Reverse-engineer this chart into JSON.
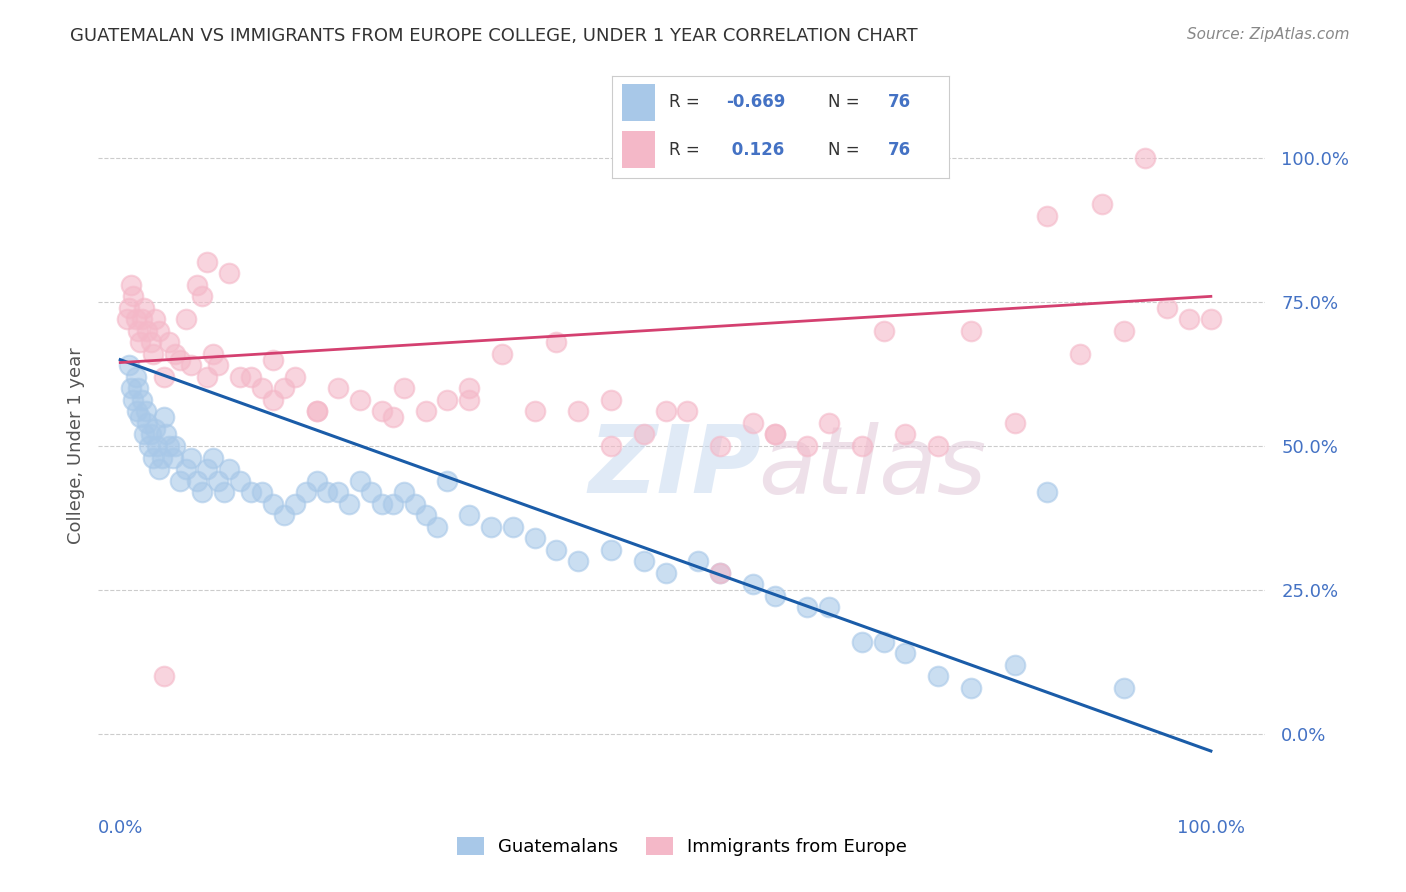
{
  "title": "GUATEMALAN VS IMMIGRANTS FROM EUROPE COLLEGE, UNDER 1 YEAR CORRELATION CHART",
  "source": "Source: ZipAtlas.com",
  "ylabel": "College, Under 1 year",
  "ytick_values": [
    0.0,
    0.25,
    0.5,
    0.75,
    1.0
  ],
  "ytick_labels": [
    "0.0%",
    "25.0%",
    "50.0%",
    "75.0%",
    "100.0%"
  ],
  "xtick_labels": [
    "0.0%",
    "100.0%"
  ],
  "xlim": [
    -0.02,
    1.05
  ],
  "ylim": [
    -0.12,
    1.12
  ],
  "R_blue": -0.669,
  "N_blue": 76,
  "R_pink": 0.126,
  "N_pink": 76,
  "legend_label_blue": "Guatemalans",
  "legend_label_pink": "Immigrants from Europe",
  "blue_scatter_color": "#a8c8e8",
  "pink_scatter_color": "#f4b8c8",
  "blue_line_color": "#1a5ca8",
  "pink_line_color": "#d44070",
  "axis_label_color": "#4472c4",
  "title_color": "#333333",
  "source_color": "#888888",
  "grid_color": "#cccccc",
  "blue_trend_y0": 0.65,
  "blue_trend_y1": -0.03,
  "pink_trend_y0": 0.645,
  "pink_trend_y1": 0.76,
  "blue_x": [
    0.008,
    0.01,
    0.012,
    0.014,
    0.015,
    0.016,
    0.018,
    0.02,
    0.022,
    0.024,
    0.025,
    0.026,
    0.028,
    0.03,
    0.032,
    0.034,
    0.036,
    0.038,
    0.04,
    0.042,
    0.045,
    0.048,
    0.05,
    0.055,
    0.06,
    0.065,
    0.07,
    0.075,
    0.08,
    0.085,
    0.09,
    0.095,
    0.1,
    0.11,
    0.12,
    0.13,
    0.14,
    0.15,
    0.16,
    0.17,
    0.18,
    0.19,
    0.2,
    0.21,
    0.22,
    0.23,
    0.24,
    0.25,
    0.26,
    0.27,
    0.28,
    0.29,
    0.3,
    0.32,
    0.34,
    0.36,
    0.38,
    0.4,
    0.42,
    0.45,
    0.48,
    0.5,
    0.53,
    0.55,
    0.58,
    0.6,
    0.63,
    0.65,
    0.68,
    0.7,
    0.72,
    0.75,
    0.78,
    0.82,
    0.85,
    0.92
  ],
  "blue_y": [
    0.64,
    0.6,
    0.58,
    0.62,
    0.56,
    0.6,
    0.55,
    0.58,
    0.52,
    0.56,
    0.54,
    0.5,
    0.52,
    0.48,
    0.53,
    0.5,
    0.46,
    0.48,
    0.55,
    0.52,
    0.5,
    0.48,
    0.5,
    0.44,
    0.46,
    0.48,
    0.44,
    0.42,
    0.46,
    0.48,
    0.44,
    0.42,
    0.46,
    0.44,
    0.42,
    0.42,
    0.4,
    0.38,
    0.4,
    0.42,
    0.44,
    0.42,
    0.42,
    0.4,
    0.44,
    0.42,
    0.4,
    0.4,
    0.42,
    0.4,
    0.38,
    0.36,
    0.44,
    0.38,
    0.36,
    0.36,
    0.34,
    0.32,
    0.3,
    0.32,
    0.3,
    0.28,
    0.3,
    0.28,
    0.26,
    0.24,
    0.22,
    0.22,
    0.16,
    0.16,
    0.14,
    0.1,
    0.08,
    0.12,
    0.42,
    0.08
  ],
  "pink_x": [
    0.006,
    0.008,
    0.01,
    0.012,
    0.014,
    0.016,
    0.018,
    0.02,
    0.022,
    0.025,
    0.028,
    0.03,
    0.032,
    0.036,
    0.04,
    0.045,
    0.05,
    0.055,
    0.06,
    0.065,
    0.07,
    0.075,
    0.08,
    0.085,
    0.09,
    0.1,
    0.11,
    0.12,
    0.13,
    0.14,
    0.15,
    0.16,
    0.18,
    0.2,
    0.22,
    0.24,
    0.26,
    0.28,
    0.3,
    0.32,
    0.35,
    0.38,
    0.4,
    0.42,
    0.45,
    0.48,
    0.5,
    0.52,
    0.55,
    0.58,
    0.6,
    0.63,
    0.65,
    0.68,
    0.7,
    0.72,
    0.75,
    0.78,
    0.82,
    0.85,
    0.88,
    0.9,
    0.92,
    0.94,
    0.96,
    0.98,
    1.0,
    0.45,
    0.55,
    0.6,
    0.32,
    0.25,
    0.18,
    0.14,
    0.08,
    0.04
  ],
  "pink_y": [
    0.72,
    0.74,
    0.78,
    0.76,
    0.72,
    0.7,
    0.68,
    0.72,
    0.74,
    0.7,
    0.68,
    0.66,
    0.72,
    0.7,
    0.62,
    0.68,
    0.66,
    0.65,
    0.72,
    0.64,
    0.78,
    0.76,
    0.62,
    0.66,
    0.64,
    0.8,
    0.62,
    0.62,
    0.6,
    0.58,
    0.6,
    0.62,
    0.56,
    0.6,
    0.58,
    0.56,
    0.6,
    0.56,
    0.58,
    0.6,
    0.66,
    0.56,
    0.68,
    0.56,
    0.58,
    0.52,
    0.56,
    0.56,
    0.5,
    0.54,
    0.52,
    0.5,
    0.54,
    0.5,
    0.7,
    0.52,
    0.5,
    0.7,
    0.54,
    0.9,
    0.66,
    0.92,
    0.7,
    1.0,
    0.74,
    0.72,
    0.72,
    0.5,
    0.28,
    0.52,
    0.58,
    0.55,
    0.56,
    0.65,
    0.82,
    0.1
  ]
}
